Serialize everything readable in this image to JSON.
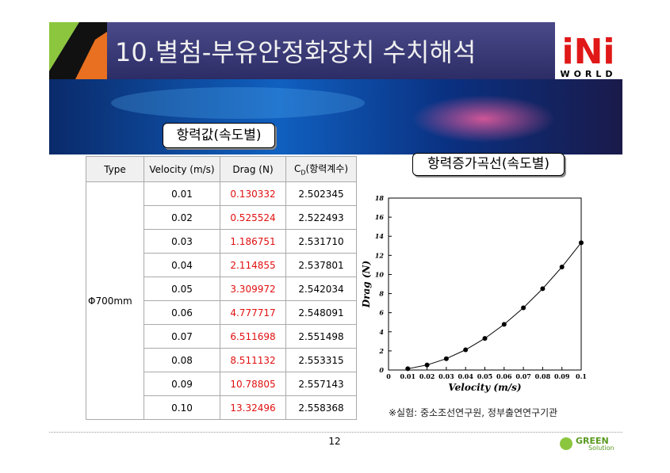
{
  "header": {
    "title": "10.별첨-부유안정화장치 수치해석",
    "logo": "iNi",
    "logo_sub": "WORLD"
  },
  "table_caption": "항력값(속도별)",
  "table": {
    "columns": [
      "Type",
      "Velocity (m/s)",
      "Drag (N)",
      {
        "main": "C",
        "sub": "D",
        "rest": "(항력계수)"
      }
    ],
    "type": "Φ700mm",
    "rows": [
      [
        "0.01",
        "0.130332",
        "2.502345"
      ],
      [
        "0.02",
        "0.525524",
        "2.522493"
      ],
      [
        "0.03",
        "1.186751",
        "2.531710"
      ],
      [
        "0.04",
        "2.114855",
        "2.537801"
      ],
      [
        "0.05",
        "3.309972",
        "2.542034"
      ],
      [
        "0.06",
        "4.777717",
        "2.548091"
      ],
      [
        "0.07",
        "6.511698",
        "2.551498"
      ],
      [
        "0.08",
        "8.511132",
        "2.553315"
      ],
      [
        "0.09",
        "10.78805",
        "2.557143"
      ],
      [
        "0.10",
        "13.32496",
        "2.558368"
      ]
    ]
  },
  "chart_caption": "항력증가곡선(속도별)",
  "chart": {
    "type": "line",
    "x_label": "Velocity (m/s)",
    "y_label": "Drag (N)",
    "x": [
      0.01,
      0.02,
      0.03,
      0.04,
      0.05,
      0.06,
      0.07,
      0.08,
      0.09,
      0.1
    ],
    "values": [
      0.130332,
      0.525524,
      1.186751,
      2.114855,
      3.309972,
      4.777717,
      6.511698,
      8.511132,
      10.78805,
      13.32496
    ],
    "color": "#000000",
    "xlim": [
      0,
      0.1
    ],
    "ylim": [
      0,
      18
    ],
    "xticks": [
      0,
      0.01,
      0.02,
      0.03,
      0.04,
      0.05,
      0.06,
      0.07,
      0.08,
      0.09,
      0.1
    ],
    "yticks": [
      0,
      2,
      4,
      6,
      8,
      10,
      12,
      14,
      16,
      18
    ]
  },
  "footnote": "※실험: 중소조선연구원, 정부출연연구기관",
  "page_number": "12",
  "footer_logo": {
    "main": "GREEN",
    "sub": "Solution"
  }
}
